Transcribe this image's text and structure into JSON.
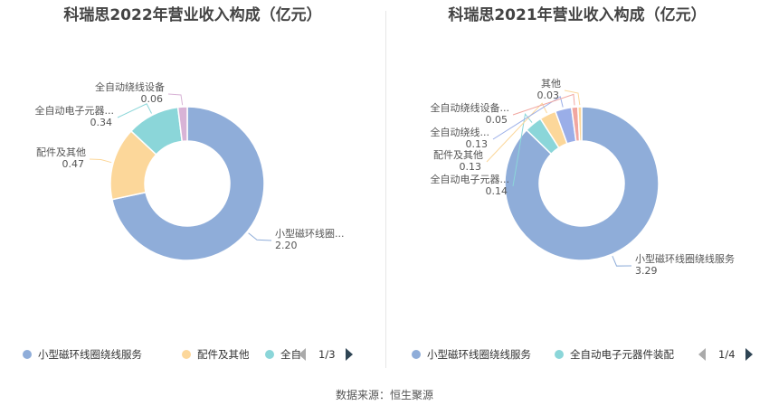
{
  "colors": [
    "#8fadd9",
    "#fcd79a",
    "#8bd6d9",
    "#9aaee8",
    "#f1a6a0",
    "#d8b3d6"
  ],
  "source": "数据来源：恒生聚源",
  "charts": [
    {
      "title": "科瑞思2022年营业收入构成（亿元）",
      "chart_data": {
        "type": "pie",
        "series": [
          {
            "name": "小型磁环线圈绕线服务",
            "label": "小型磁环线圈...",
            "value": 2.2,
            "value_text": "2.20",
            "color": "#8fadd9"
          },
          {
            "name": "配件及其他",
            "label": "配件及其他",
            "value": 0.47,
            "value_text": "0.47",
            "color": "#fcd79a"
          },
          {
            "name": "全自动电子元器件装配",
            "label": "全自动电子元器...",
            "value": 0.34,
            "value_text": "0.34",
            "color": "#8bd6d9"
          },
          {
            "name": "全自动绕线设备",
            "label": "全自动绕线设备",
            "value": 0.06,
            "value_text": "0.06",
            "color": "#d8b3d6"
          }
        ]
      },
      "legend": {
        "items": [
          {
            "name": "小型磁环线圈绕线服务",
            "color": "#8fadd9"
          },
          {
            "name": "配件及其他",
            "color": "#fcd79a"
          },
          {
            "name": "全自",
            "color": "#8bd6d9"
          }
        ],
        "page": "1/3"
      }
    },
    {
      "title": "科瑞思2021年营业收入构成（亿元）",
      "chart_data": {
        "type": "pie",
        "series": [
          {
            "name": "小型磁环线圈绕线服务",
            "label": "小型磁环线圈绕线服务",
            "value": 3.29,
            "value_text": "3.29",
            "color": "#8fadd9"
          },
          {
            "name": "全自动电子元器件装配",
            "label": "全自动电子元器...",
            "value": 0.14,
            "value_text": "0.14",
            "color": "#8bd6d9"
          },
          {
            "name": "配件及其他",
            "label": "配件及其他",
            "value": 0.13,
            "value_text": "0.13",
            "color": "#fcd79a"
          },
          {
            "name": "全自动绕线设备",
            "label": "全自动绕线...",
            "value": 0.13,
            "value_text": "0.13",
            "color": "#9aaee8"
          },
          {
            "name": "全自动绕线设备",
            "label": "全自动绕线设备...",
            "value": 0.05,
            "value_text": "0.05",
            "color": "#f1a6a0"
          },
          {
            "name": "其他",
            "label": "其他",
            "value": 0.03,
            "value_text": "0.03",
            "color": "#fcd79a"
          }
        ]
      },
      "legend": {
        "items": [
          {
            "name": "小型磁环线圈绕线服务",
            "color": "#8fadd9"
          },
          {
            "name": "全自动电子元器件装配",
            "color": "#8bd6d9"
          }
        ],
        "page": "1/4"
      }
    }
  ]
}
